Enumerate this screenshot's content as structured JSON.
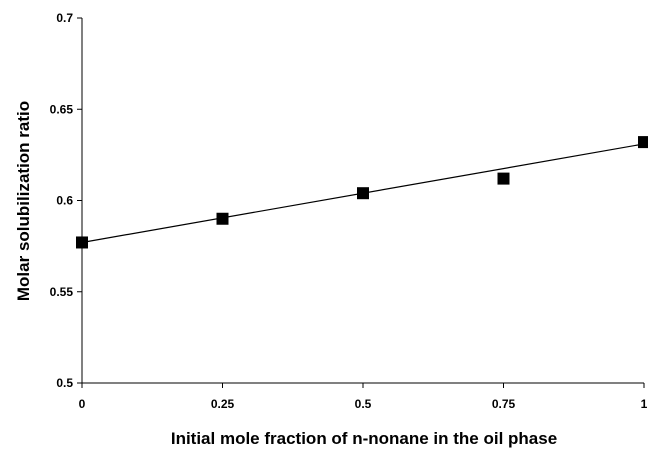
{
  "chart_data": {
    "type": "scatter",
    "title": "",
    "xlabel": "Initial mole fraction of n-nonane in the oil phase",
    "ylabel": "Molar solubilization ratio",
    "xlim": [
      0,
      1
    ],
    "ylim": [
      0.5,
      0.7
    ],
    "x_ticks": [
      "0",
      "0.25",
      "0.5",
      "0.75",
      "1"
    ],
    "y_ticks": [
      "0.5",
      "0.55",
      "0.6",
      "0.65",
      "0.7"
    ],
    "grid": false,
    "legend": "none",
    "series": [
      {
        "marker": "square",
        "color": "#000000",
        "x": [
          0,
          0.25,
          0.5,
          0.75,
          1
        ],
        "y": [
          0.577,
          0.59,
          0.604,
          0.612,
          0.632
        ]
      }
    ],
    "trendline": {
      "type": "linear",
      "x": [
        0,
        1
      ],
      "y": [
        0.577,
        0.631
      ]
    }
  }
}
